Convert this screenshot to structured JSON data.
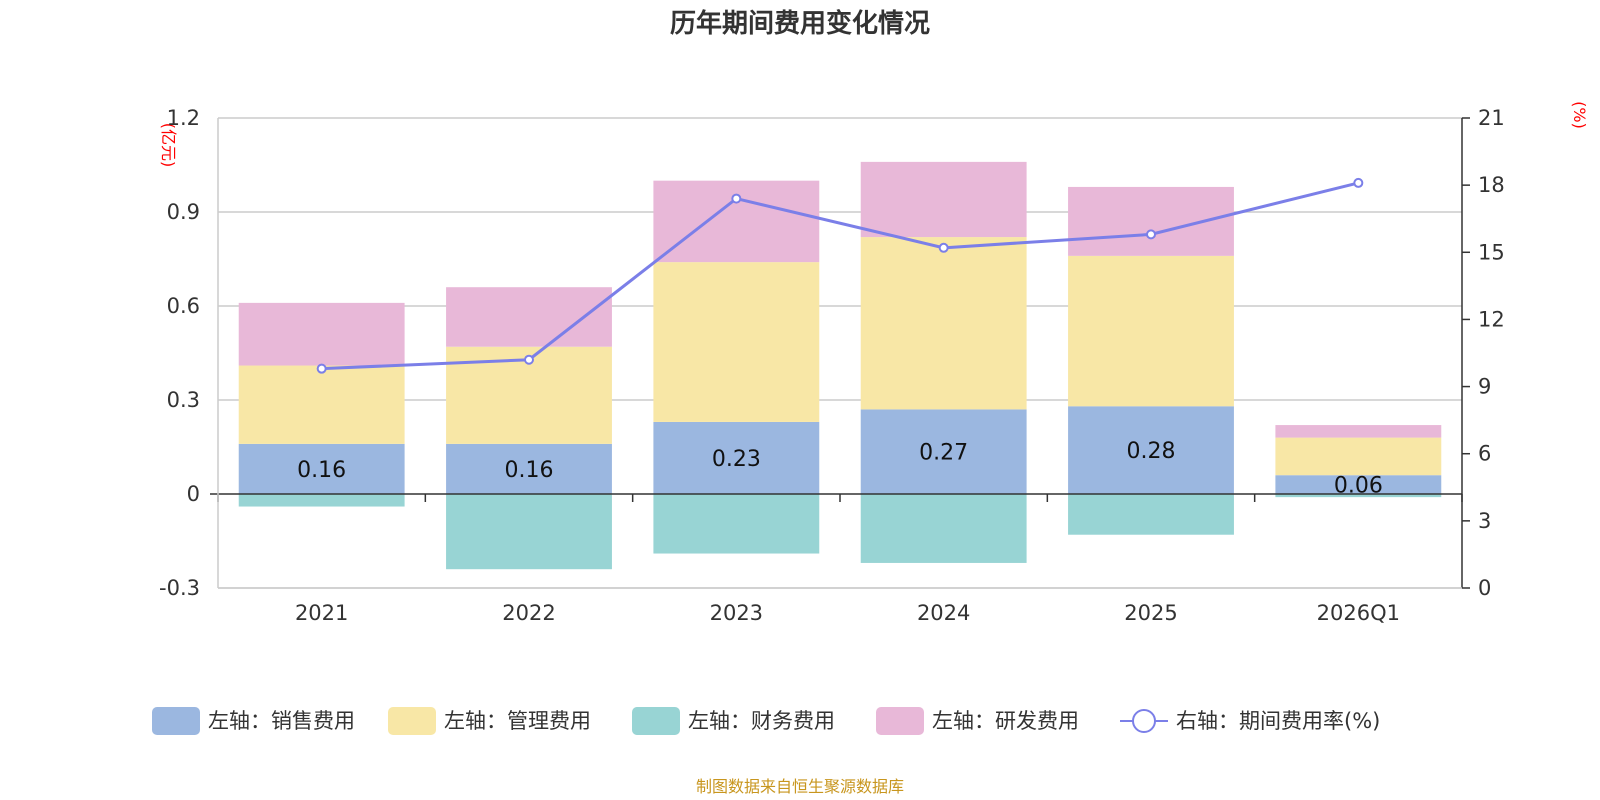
{
  "chart_data": {
    "type": "bar",
    "title": "历年期间费用变化情况",
    "categories": [
      "2021",
      "2022",
      "2023",
      "2024",
      "2025",
      "2026Q1"
    ],
    "left_axis": {
      "unit": "(亿元)",
      "ylim": [
        -0.3,
        1.2
      ],
      "ticks": [
        "-0.3",
        "0",
        "0.3",
        "0.6",
        "0.9",
        "1.2"
      ],
      "tick_values": [
        -0.3,
        0,
        0.3,
        0.6,
        0.9,
        1.2
      ]
    },
    "right_axis": {
      "unit": "(%)",
      "ylim": [
        0,
        21
      ],
      "ticks": [
        "0",
        "3",
        "6",
        "9",
        "12",
        "15",
        "18",
        "21"
      ],
      "tick_values": [
        0,
        3,
        6,
        9,
        12,
        15,
        18,
        21
      ]
    },
    "series": [
      {
        "name": "左轴：销售费用",
        "type": "bar",
        "color": "#9bb7e0",
        "values": [
          0.16,
          0.16,
          0.23,
          0.27,
          0.28,
          0.06
        ],
        "labels": [
          "0.16",
          "0.16",
          "0.23",
          "0.27",
          "0.28",
          "0.06"
        ]
      },
      {
        "name": "左轴：管理费用",
        "type": "bar",
        "color": "#f8e7a6",
        "values": [
          0.25,
          0.31,
          0.51,
          0.55,
          0.48,
          0.12
        ]
      },
      {
        "name": "左轴：财务费用",
        "type": "bar",
        "color": "#98d4d4",
        "values": [
          -0.04,
          -0.24,
          -0.19,
          -0.22,
          -0.13,
          -0.01
        ]
      },
      {
        "name": "左轴：研发费用",
        "type": "bar",
        "color": "#e8b8d8",
        "values": [
          0.2,
          0.19,
          0.26,
          0.24,
          0.22,
          0.04
        ]
      },
      {
        "name": "右轴：期间费用率(%)",
        "type": "line",
        "axis": "right",
        "color": "#7b7fe8",
        "values": [
          9.8,
          10.2,
          17.4,
          15.2,
          15.8,
          18.1
        ]
      }
    ],
    "source": "制图数据来自恒生聚源数据库"
  }
}
